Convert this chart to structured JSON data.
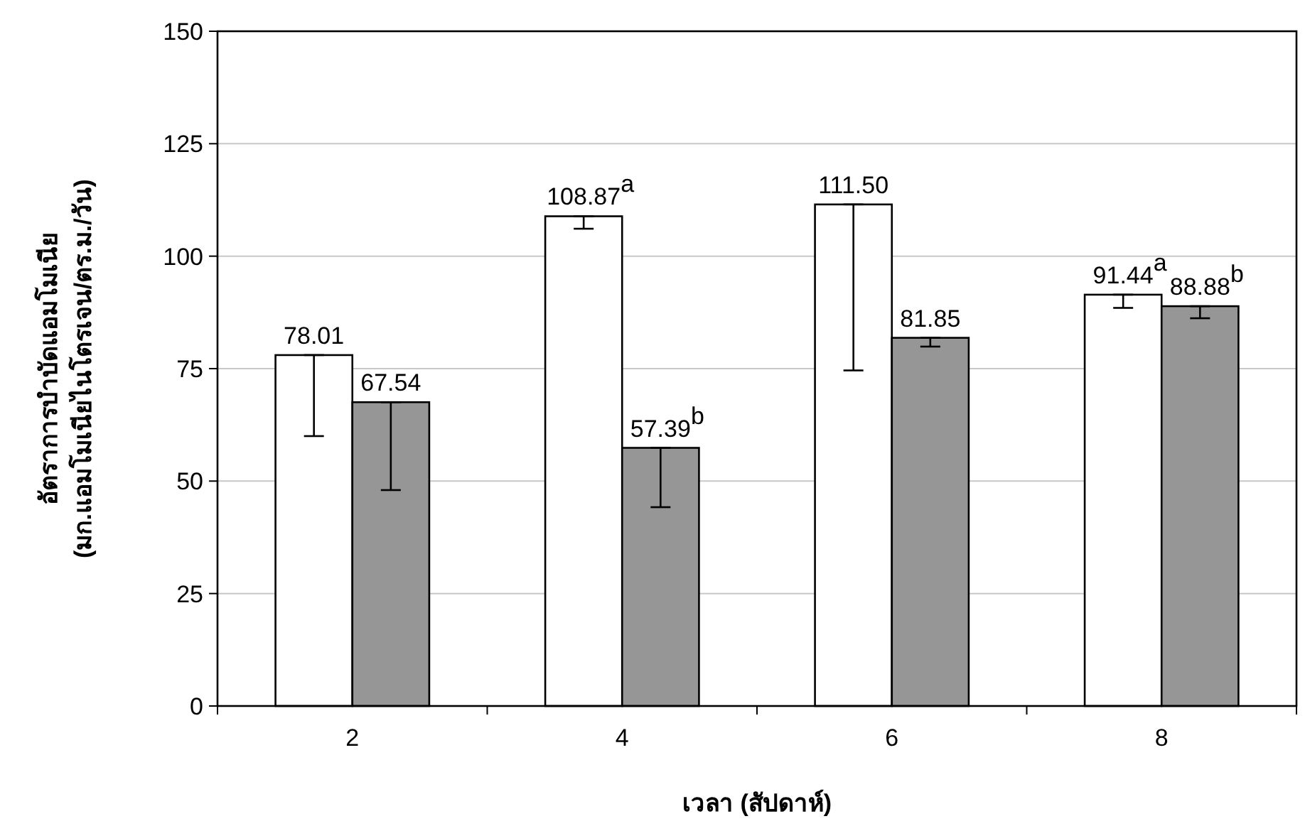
{
  "chart_data": {
    "type": "bar",
    "xlabel": "เวลา (สัปดาห์)",
    "ylabel": "อัตราการบำบัดแอมโมเนีย\n(มก.แอมโมเนียไนโตรเจน/ตร.ม./วัน)",
    "categories": [
      "2",
      "4",
      "6",
      "8"
    ],
    "series": [
      {
        "color": "#ffffff",
        "values": [
          78.01,
          108.87,
          111.5,
          91.44
        ],
        "errors": [
          [
            60,
            78.01
          ],
          [
            106.1,
            108.87
          ],
          [
            74.6,
            111.5
          ],
          [
            88.5,
            91.44
          ]
        ],
        "value_labels": [
          "78.01",
          "108.87$^{a}$",
          "111.50",
          "91.44$^{a}$"
        ]
      },
      {
        "color": "#969696",
        "values": [
          67.54,
          57.39,
          81.85,
          88.88
        ],
        "errors": [
          [
            48,
            67.54
          ],
          [
            44.2,
            57.39
          ],
          [
            79.9,
            81.85
          ],
          [
            86.2,
            88.88
          ]
        ],
        "value_labels": [
          "67.54",
          "57.39$^{b}$",
          "81.85",
          "88.88$^{b}$"
        ]
      }
    ],
    "ylim": [
      0,
      150
    ],
    "yticks": [
      0,
      25,
      50,
      75,
      100,
      125,
      150
    ],
    "grid": "y"
  }
}
